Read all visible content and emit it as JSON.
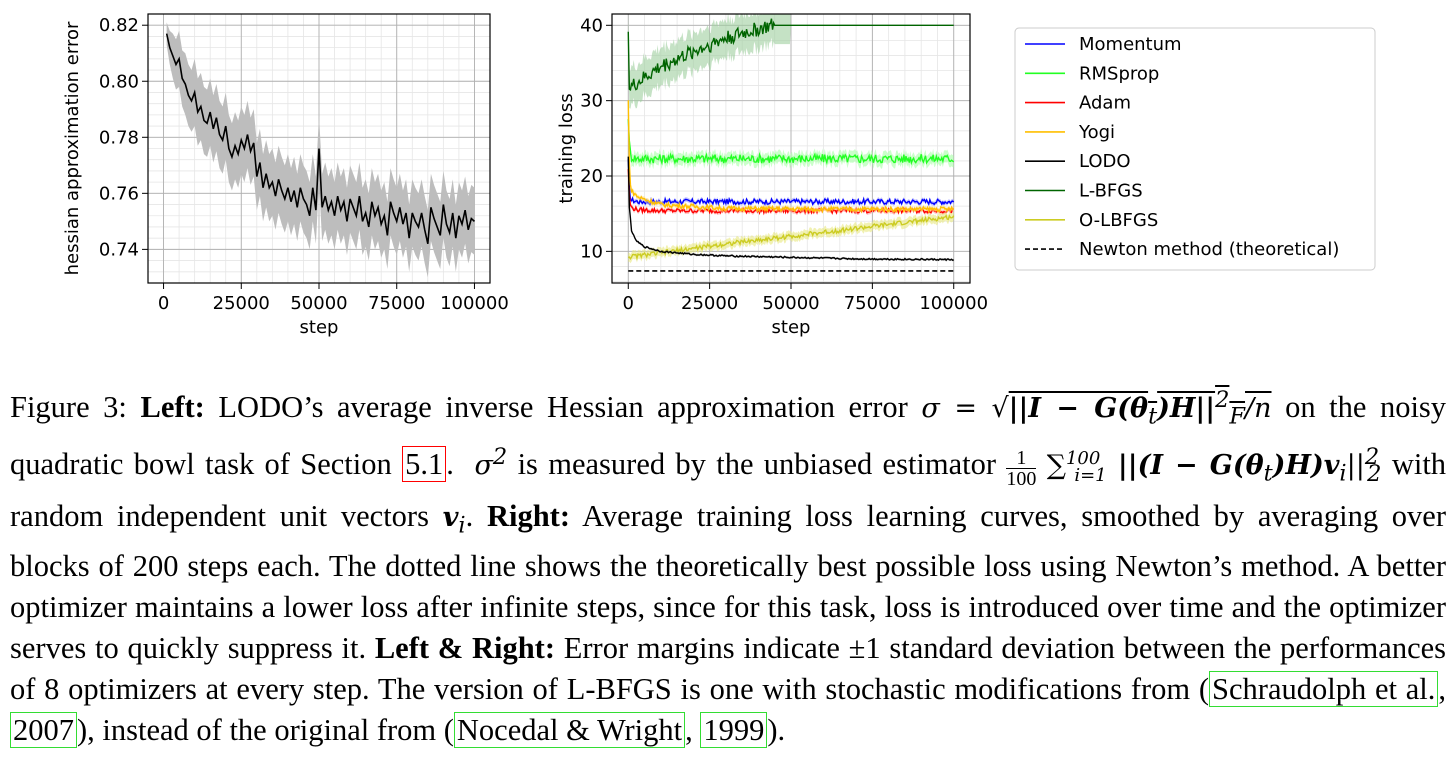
{
  "chart_data": [
    {
      "type": "line",
      "title": "",
      "xlabel": "step",
      "ylabel": "hessian approximation error",
      "xlim": [
        -5000,
        105000
      ],
      "ylim": [
        0.728,
        0.824
      ],
      "xticks": [
        0,
        25000,
        50000,
        75000,
        100000
      ],
      "xtick_labels": [
        "0",
        "25000",
        "50000",
        "75000",
        "100000"
      ],
      "yticks": [
        0.74,
        0.76,
        0.78,
        0.8,
        0.82
      ],
      "ytick_labels": [
        "0.74",
        "0.76",
        "0.78",
        "0.80",
        "0.82"
      ],
      "grid": true,
      "series": [
        {
          "color": "#000000",
          "band_color": "#bdbdbd",
          "x": [
            1000,
            2000,
            3000,
            4000,
            5000,
            6000,
            7000,
            8000,
            9000,
            10000,
            11000,
            12000,
            13000,
            14000,
            15000,
            16000,
            17000,
            18000,
            19000,
            20000,
            21000,
            22000,
            23000,
            24000,
            25000,
            26000,
            27000,
            28000,
            29000,
            30000,
            31000,
            32000,
            33000,
            34000,
            35000,
            36000,
            37000,
            38000,
            39000,
            40000,
            41000,
            42000,
            43000,
            44000,
            45000,
            46000,
            47000,
            48000,
            49000,
            50000,
            51000,
            52000,
            53000,
            54000,
            55000,
            56000,
            57000,
            58000,
            59000,
            60000,
            61000,
            62000,
            63000,
            64000,
            65000,
            66000,
            67000,
            68000,
            69000,
            70000,
            71000,
            72000,
            73000,
            74000,
            75000,
            76000,
            77000,
            78000,
            79000,
            80000,
            81000,
            82000,
            83000,
            84000,
            85000,
            86000,
            87000,
            88000,
            89000,
            90000,
            91000,
            92000,
            93000,
            94000,
            95000,
            96000,
            97000,
            98000,
            99000,
            100000
          ],
          "y": [
            0.817,
            0.812,
            0.809,
            0.806,
            0.808,
            0.801,
            0.799,
            0.795,
            0.793,
            0.796,
            0.789,
            0.791,
            0.786,
            0.785,
            0.789,
            0.783,
            0.787,
            0.781,
            0.779,
            0.784,
            0.776,
            0.773,
            0.777,
            0.774,
            0.779,
            0.776,
            0.781,
            0.775,
            0.778,
            0.766,
            0.771,
            0.762,
            0.767,
            0.762,
            0.764,
            0.759,
            0.765,
            0.761,
            0.758,
            0.762,
            0.757,
            0.761,
            0.755,
            0.762,
            0.758,
            0.756,
            0.752,
            0.762,
            0.754,
            0.776,
            0.755,
            0.759,
            0.754,
            0.757,
            0.752,
            0.759,
            0.754,
            0.757,
            0.75,
            0.758,
            0.755,
            0.752,
            0.759,
            0.75,
            0.753,
            0.748,
            0.757,
            0.752,
            0.755,
            0.749,
            0.752,
            0.745,
            0.757,
            0.753,
            0.75,
            0.755,
            0.749,
            0.753,
            0.744,
            0.753,
            0.75,
            0.748,
            0.753,
            0.747,
            0.742,
            0.755,
            0.751,
            0.748,
            0.745,
            0.756,
            0.749,
            0.746,
            0.753,
            0.744,
            0.752,
            0.749,
            0.754,
            0.747,
            0.751,
            0.75
          ],
          "band": [
            0.004,
            0.006,
            0.008,
            0.009,
            0.01,
            0.01,
            0.011,
            0.011,
            0.011,
            0.012,
            0.012,
            0.012,
            0.012,
            0.012,
            0.012,
            0.012,
            0.012,
            0.012,
            0.012,
            0.012,
            0.012,
            0.012,
            0.012,
            0.012,
            0.012,
            0.012,
            0.012,
            0.012,
            0.012,
            0.012,
            0.012,
            0.012,
            0.012,
            0.012,
            0.012,
            0.012,
            0.012,
            0.012,
            0.012,
            0.012,
            0.012,
            0.012,
            0.012,
            0.012,
            0.012,
            0.012,
            0.012,
            0.012,
            0.012,
            0.012,
            0.012,
            0.012,
            0.012,
            0.012,
            0.012,
            0.012,
            0.012,
            0.012,
            0.012,
            0.012,
            0.012,
            0.012,
            0.012,
            0.012,
            0.012,
            0.012,
            0.012,
            0.012,
            0.012,
            0.012,
            0.012,
            0.012,
            0.012,
            0.012,
            0.012,
            0.012,
            0.012,
            0.012,
            0.012,
            0.012,
            0.012,
            0.012,
            0.012,
            0.012,
            0.012,
            0.012,
            0.012,
            0.012,
            0.012,
            0.012,
            0.012,
            0.012,
            0.012,
            0.012,
            0.012,
            0.012,
            0.012,
            0.012,
            0.012,
            0.012
          ]
        }
      ]
    },
    {
      "type": "line",
      "title": "",
      "xlabel": "step",
      "ylabel": "training loss",
      "xlim": [
        -5000,
        105000
      ],
      "ylim": [
        5.8,
        41.5
      ],
      "xticks": [
        0,
        25000,
        50000,
        75000,
        100000
      ],
      "xtick_labels": [
        "0",
        "25000",
        "50000",
        "75000",
        "100000"
      ],
      "yticks": [
        10,
        20,
        30,
        40
      ],
      "ytick_labels": [
        "10",
        "20",
        "30",
        "40"
      ],
      "grid": true,
      "legend": "outside-right",
      "series": [
        {
          "name": "Momentum",
          "color": "#0000ff",
          "band_color": "#9999ff",
          "x": [
            0,
            400,
            1000,
            3000,
            10000,
            30000,
            60000,
            100000
          ],
          "y": [
            22.0,
            17.4,
            16.8,
            16.6,
            16.6,
            16.6,
            16.6,
            16.6
          ],
          "band": 0.3,
          "noise": 0.35
        },
        {
          "name": "RMSprop",
          "color": "#22ff22",
          "band_color": "#a6ffa6",
          "x": [
            0,
            400,
            1000,
            3000,
            10000,
            30000,
            60000,
            100000
          ],
          "y": [
            28.0,
            23.5,
            22.5,
            22.3,
            22.3,
            22.3,
            22.3,
            22.3
          ],
          "band": 0.8,
          "noise": 0.6
        },
        {
          "name": "Adam",
          "color": "#ff0000",
          "band_color": "#ff9999",
          "x": [
            0,
            400,
            1000,
            3000,
            10000,
            30000,
            60000,
            100000
          ],
          "y": [
            21.0,
            16.5,
            15.8,
            15.5,
            15.4,
            15.4,
            15.4,
            15.4
          ],
          "band": 0.3,
          "noise": 0.3
        },
        {
          "name": "Yogi",
          "color": "#ffbf00",
          "band_color": "#ffe080",
          "x": [
            0,
            400,
            1000,
            3000,
            10000,
            30000,
            60000,
            100000
          ],
          "y": [
            30.0,
            20.0,
            18.0,
            17.2,
            16.2,
            15.7,
            15.6,
            15.6
          ],
          "band": 0.3,
          "noise": 0.3
        },
        {
          "name": "LODO",
          "color": "#000000",
          "band_color": "#888888",
          "x": [
            0,
            300,
            1000,
            2000,
            3000,
            5000,
            10000,
            20000,
            30000,
            50000,
            70000,
            100000
          ],
          "y": [
            22.5,
            16.0,
            12.8,
            11.7,
            11.2,
            10.6,
            10.0,
            9.6,
            9.4,
            9.2,
            9.0,
            8.9
          ],
          "band": 0.15,
          "noise": 0.1
        },
        {
          "name": "L-BFGS",
          "color": "#006400",
          "band_color": "#9fcf9f",
          "x": [
            0,
            200,
            1000,
            5000,
            10000,
            20000,
            30000,
            40000,
            45000,
            50000,
            100000
          ],
          "y": [
            40.0,
            31.5,
            31.8,
            33.0,
            34.5,
            36.5,
            38.3,
            39.5,
            40.0,
            40.0,
            40.0
          ],
          "band": 2.5,
          "noise": 1.0
        },
        {
          "name": "O-LBFGS",
          "color": "#cccc22",
          "band_color": "#e8e880",
          "x": [
            0,
            1000,
            10000,
            30000,
            50000,
            75000,
            100000
          ],
          "y": [
            9.3,
            9.3,
            9.8,
            11.0,
            12.0,
            13.3,
            14.6
          ],
          "band": 0.6,
          "noise": 0.3
        },
        {
          "name": "Newton method (theoretical)",
          "color": "#000000",
          "dashed": true,
          "x": [
            0,
            100000
          ],
          "y": [
            7.4,
            7.4
          ]
        }
      ]
    }
  ],
  "caption": {
    "figure_label": "Figure 3:",
    "left_label": "Left:",
    "t1": "LODO’s average inverse Hessian approximation error",
    "m_sigma_eq": "σ =",
    "m_sqrt_body": "||I − G(θ",
    "m_sub_t": "t",
    "m_h": ")H||",
    "m_sup2": "2",
    "m_subF": "F",
    "m_over_n": "/n",
    "t2": "on the noisy quadratic bowl task of Section",
    "ref_section": "5.1",
    "t2b": ".",
    "m_sigma2": "σ",
    "m_sup2b": "2",
    "t3": "is measured by the unbiased estimator",
    "frac_num": "1",
    "frac_den": "100",
    "m_sum": "∑",
    "m_sum_sup": "100",
    "m_sum_sub": "i=1",
    "m_est": "||(I − G(θ",
    "m_est_t": "t",
    "m_est2": ")H)v",
    "m_est_i": "i",
    "m_est3": "||",
    "m_est_sup": "2",
    "m_est_sub": "2",
    "t4": "with random independent unit vectors",
    "m_v": "v",
    "m_vi": "i",
    "t4b": ".",
    "right_label": "Right:",
    "t5": "Average training loss learning curves, smoothed by averaging over blocks of 200 steps each. The dotted line shows the theoretically best possible loss using Newton’s method. A better optimizer maintains a lower loss after infinite steps, since for this task, loss is introduced over time and the optimizer serves to quickly suppress it.",
    "lr_label": "Left & Right:",
    "t6": "Error margins indicate ±1 standard deviation between the performances of 8 optimizers at every step. The version of L-BFGS is one with stochastic modifications from (",
    "ref1_author": "Schraudolph et al.",
    "ref1_sep": ", ",
    "ref1_year": "2007",
    "t7": "), instead of the original from (",
    "ref2_author": "Nocedal & Wright",
    "ref2_sep": ", ",
    "ref2_year": "1999",
    "t8": ")."
  }
}
